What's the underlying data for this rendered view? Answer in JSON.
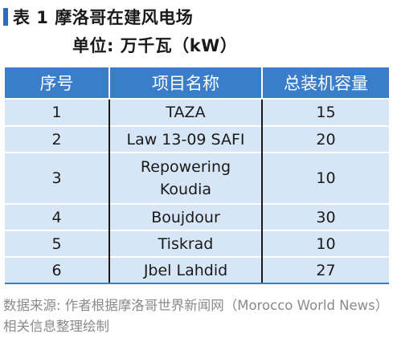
{
  "title": "表 1 摩洛哥在建风电场",
  "unit": "单位: 万千瓦（kW）",
  "table": {
    "headers": [
      "序号",
      "项目名称",
      "总装机容量"
    ],
    "rows": [
      {
        "index": "1",
        "name_lines": [
          "TAZA"
        ],
        "capacity": "15"
      },
      {
        "index": "2",
        "name_lines": [
          "Law 13-09 SAFI"
        ],
        "capacity": "20"
      },
      {
        "index": "3",
        "name_lines": [
          "Repowering",
          "Koudia"
        ],
        "capacity": "10"
      },
      {
        "index": "4",
        "name_lines": [
          "Boujdour"
        ],
        "capacity": "30"
      },
      {
        "index": "5",
        "name_lines": [
          "Tiskrad"
        ],
        "capacity": "10"
      },
      {
        "index": "6",
        "name_lines": [
          "Jbel Lahdid"
        ],
        "capacity": "27"
      }
    ]
  },
  "source_note": "数据来源: 作者根据摩洛哥世界新闻网（Morocco World News）相关信息整理绘制",
  "colors": {
    "header_bg": "#3a7dc9",
    "row_bg": "#d6e6f6",
    "title_bar": "#2e6db5",
    "source_text": "#8a8a8a"
  }
}
